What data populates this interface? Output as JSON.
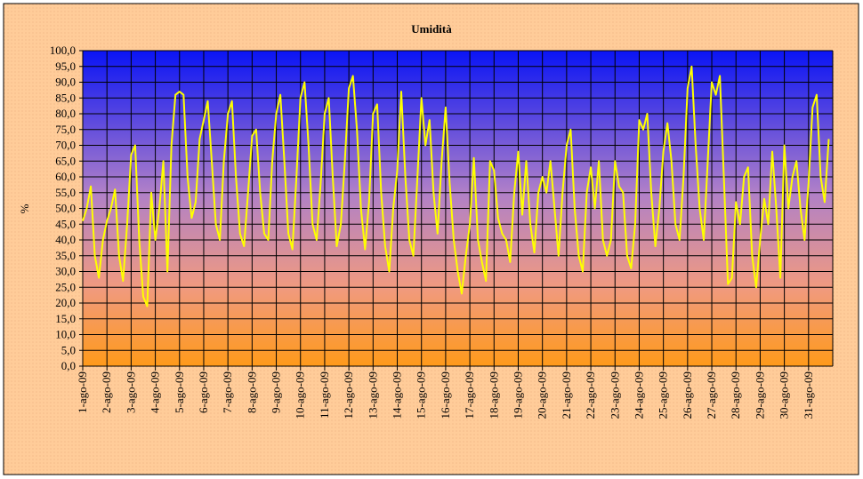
{
  "chart_data": {
    "type": "line",
    "title": "Umidità",
    "y_label": "%",
    "categories": [
      "1-ago-09",
      "2-ago-09",
      "3-ago-09",
      "4-ago-09",
      "5-ago-09",
      "6-ago-09",
      "7-ago-09",
      "8-ago-09",
      "9-ago-09",
      "10-ago-09",
      "11-ago-09",
      "12-ago-09",
      "13-ago-09",
      "14-ago-09",
      "15-ago-09",
      "16-ago-09",
      "17-ago-09",
      "18-ago-09",
      "19-ago-09",
      "20-ago-09",
      "21-ago-09",
      "22-ago-09",
      "23-ago-09",
      "24-ago-09",
      "25-ago-09",
      "26-ago-09",
      "27-ago-09",
      "28-ago-09",
      "29-ago-09",
      "30-ago-09",
      "31-ago-09"
    ],
    "series": [
      {
        "color": "#ffff00",
        "values": [
          [
            46,
            50,
            57,
            35,
            28,
            40
          ],
          [
            46,
            50,
            56,
            35,
            27,
            45
          ],
          [
            67,
            70,
            40,
            22,
            19,
            55
          ],
          [
            40,
            50,
            65,
            30,
            70,
            86
          ],
          [
            87,
            86,
            60,
            47,
            52,
            72
          ],
          [
            78,
            84,
            65,
            45,
            40,
            65
          ],
          [
            80,
            84,
            60,
            42,
            38,
            55
          ],
          [
            73,
            75,
            55,
            42,
            40,
            65
          ],
          [
            80,
            86,
            65,
            42,
            37,
            60
          ],
          [
            85,
            90,
            70,
            45,
            40,
            58
          ],
          [
            80,
            85,
            60,
            38,
            45,
            65
          ],
          [
            88,
            92,
            75,
            50,
            37,
            52
          ],
          [
            80,
            83,
            55,
            38,
            30,
            50
          ],
          [
            62,
            87,
            60,
            40,
            35,
            60
          ],
          [
            85,
            70,
            78,
            55,
            42,
            65
          ],
          [
            82,
            58,
            40,
            30,
            23,
            35
          ],
          [
            45,
            66,
            40,
            33,
            27,
            65
          ],
          [
            62,
            47,
            42,
            40,
            33,
            55
          ],
          [
            68,
            48,
            65,
            45,
            36,
            55
          ],
          [
            60,
            55,
            65,
            50,
            35,
            55
          ],
          [
            70,
            75,
            50,
            35,
            30,
            55
          ],
          [
            63,
            50,
            65,
            40,
            35,
            40
          ],
          [
            65,
            57,
            55,
            35,
            31,
            45
          ],
          [
            78,
            75,
            80,
            55,
            38,
            50
          ],
          [
            68,
            77,
            65,
            45,
            40,
            60
          ],
          [
            88,
            95,
            70,
            50,
            40,
            65
          ],
          [
            90,
            86,
            92,
            60,
            26,
            28
          ],
          [
            52,
            45,
            60,
            63,
            35,
            25
          ],
          [
            40,
            53,
            45,
            68,
            50,
            28
          ],
          [
            70,
            50,
            60,
            65,
            50,
            40
          ],
          [
            58,
            82,
            86,
            60,
            52,
            72
          ]
        ]
      }
    ],
    "ylim": [
      0,
      100
    ],
    "yticks": [
      {
        "value": 0,
        "label": "0,0"
      },
      {
        "value": 5,
        "label": "5,0"
      },
      {
        "value": 10,
        "label": "10,0"
      },
      {
        "value": 15,
        "label": "15,0"
      },
      {
        "value": 20,
        "label": "20,0"
      },
      {
        "value": 25,
        "label": "25,0"
      },
      {
        "value": 30,
        "label": "30,0"
      },
      {
        "value": 35,
        "label": "35,0"
      },
      {
        "value": 40,
        "label": "40,0"
      },
      {
        "value": 45,
        "label": "45,0"
      },
      {
        "value": 50,
        "label": "50,0"
      },
      {
        "value": 55,
        "label": "55,0"
      },
      {
        "value": 60,
        "label": "60,0"
      },
      {
        "value": 65,
        "label": "65,0"
      },
      {
        "value": 70,
        "label": "70,0"
      },
      {
        "value": 75,
        "label": "75,0"
      },
      {
        "value": 80,
        "label": "80,0"
      },
      {
        "value": 85,
        "label": "85,0"
      },
      {
        "value": 90,
        "label": "90,0"
      },
      {
        "value": 95,
        "label": "95,0"
      },
      {
        "value": 100,
        "label": "100,0"
      }
    ],
    "grid": true
  }
}
